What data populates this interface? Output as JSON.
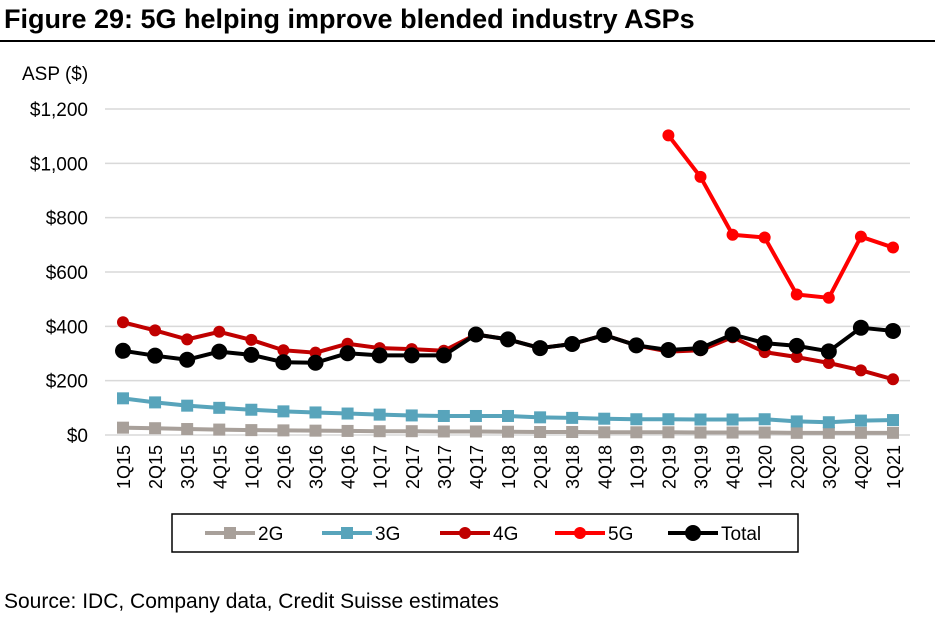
{
  "title": "Figure 29: 5G helping improve blended industry ASPs",
  "source": "Source: IDC, Company data, Credit Suisse estimates",
  "chart_data": {
    "type": "line",
    "title": "Figure 29: 5G helping improve blended industry ASPs",
    "ylabel": "ASP ($)",
    "xlabel": "",
    "ylim": [
      0,
      1200
    ],
    "yticks": [
      0,
      200,
      400,
      600,
      800,
      1000,
      1200
    ],
    "ytick_labels": [
      "$0",
      "$200",
      "$400",
      "$600",
      "$800",
      "$1,000",
      "$1,200"
    ],
    "grid": true,
    "legend_position": "bottom",
    "categories": [
      "1Q15",
      "2Q15",
      "3Q15",
      "4Q15",
      "1Q16",
      "2Q16",
      "3Q16",
      "4Q16",
      "1Q17",
      "2Q17",
      "3Q17",
      "4Q17",
      "1Q18",
      "2Q18",
      "3Q18",
      "4Q18",
      "1Q19",
      "2Q19",
      "3Q19",
      "4Q19",
      "1Q20",
      "2Q20",
      "3Q20",
      "4Q20",
      "1Q21"
    ],
    "series": [
      {
        "name": "2G",
        "color": "#a8a09a",
        "marker": "square",
        "values": [
          27,
          25,
          22,
          20,
          18,
          17,
          16,
          15,
          14,
          14,
          13,
          13,
          12,
          11,
          11,
          10,
          10,
          10,
          9,
          9,
          9,
          8,
          8,
          8,
          8
        ]
      },
      {
        "name": "3G",
        "color": "#58a4bb",
        "marker": "square",
        "values": [
          135,
          120,
          108,
          100,
          93,
          87,
          83,
          79,
          75,
          72,
          70,
          70,
          70,
          65,
          63,
          60,
          58,
          58,
          57,
          57,
          58,
          50,
          47,
          53,
          55
        ]
      },
      {
        "name": "4G",
        "color": "#c00000",
        "marker": "circle",
        "values": [
          415,
          385,
          352,
          380,
          350,
          312,
          303,
          336,
          320,
          316,
          310,
          370,
          352,
          320,
          335,
          368,
          330,
          307,
          312,
          360,
          305,
          287,
          265,
          238,
          205
        ]
      },
      {
        "name": "5G",
        "color": "#ff0000",
        "marker": "circle",
        "values": [
          null,
          null,
          null,
          null,
          null,
          null,
          null,
          null,
          null,
          null,
          null,
          null,
          null,
          null,
          null,
          null,
          null,
          1103,
          950,
          737,
          727,
          517,
          505,
          730,
          690
        ]
      },
      {
        "name": "Total",
        "color": "#000000",
        "marker": "circle",
        "values": [
          310,
          292,
          277,
          307,
          295,
          268,
          266,
          301,
          293,
          293,
          293,
          370,
          352,
          320,
          335,
          368,
          330,
          313,
          320,
          370,
          338,
          328,
          308,
          395,
          383
        ]
      }
    ]
  }
}
